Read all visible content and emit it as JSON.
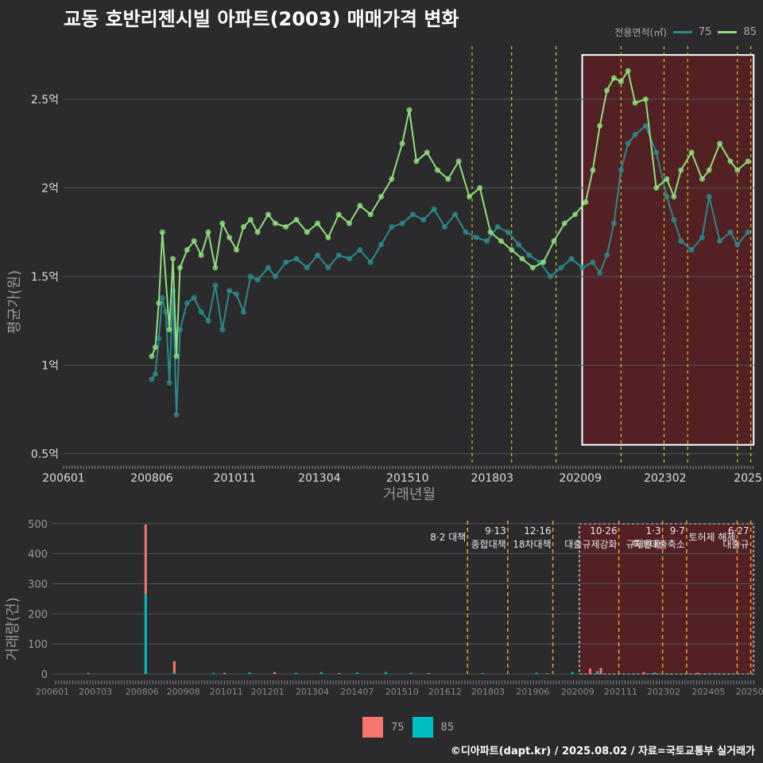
{
  "title": "교동 호반리젠시빌 아파트(2003) 매매가격 변화",
  "legend_title": "전용면적(㎡)",
  "footer": "©디아파트(dapt.kr) / 2025.08.02 / 자료=국토교통부 실거래가",
  "colors": {
    "background": "#2b2b2d",
    "grid": "#555555",
    "s75_line": "#2a8a8c",
    "s85_line": "#8fe07a",
    "bar75": "#f8766d",
    "bar85": "#00bfc4",
    "policy_line": "#e6e62e",
    "policy_line_bottom": "#f0a020",
    "highlight_fill": "#5a1f22",
    "highlight_border": "#ffffff"
  },
  "chart_data": [
    {
      "type": "line",
      "ylabel": "평균가(원)",
      "xlabel": "거래년월",
      "x_ticks": [
        "200601",
        "200806",
        "201011",
        "201304",
        "201510",
        "201803",
        "202009",
        "202302",
        "2025"
      ],
      "y_ticks": [
        "0.5억",
        "1억",
        "1.5억",
        "2억",
        "2.5억"
      ],
      "y_tick_values": [
        0.5,
        1.0,
        1.5,
        2.0,
        2.5
      ],
      "ylim": [
        0.45,
        2.8
      ],
      "xlim": [
        2006.0,
        2025.6
      ],
      "series": [
        {
          "name": "75",
          "x": [
            2008.5,
            2008.6,
            2008.7,
            2008.8,
            2008.9,
            2009.0,
            2009.1,
            2009.2,
            2009.3,
            2009.5,
            2009.7,
            2009.9,
            2010.1,
            2010.3,
            2010.5,
            2010.7,
            2010.9,
            2011.1,
            2011.3,
            2011.5,
            2011.8,
            2012.0,
            2012.3,
            2012.6,
            2012.9,
            2013.2,
            2013.5,
            2013.8,
            2014.1,
            2014.4,
            2014.7,
            2015.0,
            2015.3,
            2015.6,
            2015.9,
            2016.2,
            2016.5,
            2016.8,
            2017.1,
            2017.4,
            2017.7,
            2018.0,
            2018.3,
            2018.6,
            2018.9,
            2019.2,
            2019.5,
            2019.8,
            2020.1,
            2020.4,
            2020.7,
            2021.0,
            2021.2,
            2021.4,
            2021.6,
            2021.8,
            2022.0,
            2022.2,
            2022.5,
            2022.8,
            2023.1,
            2023.3,
            2023.5,
            2023.8,
            2024.1,
            2024.3,
            2024.6,
            2024.9,
            2025.1,
            2025.4
          ],
          "values": [
            0.92,
            0.95,
            1.15,
            1.38,
            1.3,
            0.9,
            1.42,
            0.72,
            1.2,
            1.35,
            1.38,
            1.3,
            1.25,
            1.45,
            1.2,
            1.42,
            1.4,
            1.3,
            1.5,
            1.48,
            1.55,
            1.5,
            1.58,
            1.6,
            1.55,
            1.62,
            1.55,
            1.62,
            1.6,
            1.65,
            1.58,
            1.68,
            1.78,
            1.8,
            1.85,
            1.82,
            1.88,
            1.78,
            1.85,
            1.75,
            1.72,
            1.7,
            1.78,
            1.75,
            1.68,
            1.62,
            1.58,
            1.5,
            1.55,
            1.6,
            1.55,
            1.58,
            1.52,
            1.62,
            1.8,
            2.1,
            2.25,
            2.3,
            2.35,
            2.2,
            1.95,
            1.82,
            1.7,
            1.65,
            1.72,
            1.95,
            1.7,
            1.75,
            1.68,
            1.75
          ]
        },
        {
          "name": "85",
          "x": [
            2008.5,
            2008.6,
            2008.7,
            2008.8,
            2009.0,
            2009.1,
            2009.2,
            2009.3,
            2009.5,
            2009.7,
            2009.9,
            2010.1,
            2010.3,
            2010.5,
            2010.7,
            2010.9,
            2011.1,
            2011.3,
            2011.5,
            2011.8,
            2012.0,
            2012.3,
            2012.6,
            2012.9,
            2013.2,
            2013.5,
            2013.8,
            2014.1,
            2014.4,
            2014.7,
            2015.0,
            2015.3,
            2015.6,
            2015.8,
            2016.0,
            2016.3,
            2016.6,
            2016.9,
            2017.2,
            2017.5,
            2017.8,
            2018.1,
            2018.4,
            2018.7,
            2019.0,
            2019.3,
            2019.6,
            2019.9,
            2020.2,
            2020.5,
            2020.8,
            2021.0,
            2021.2,
            2021.4,
            2021.6,
            2021.8,
            2022.0,
            2022.2,
            2022.5,
            2022.8,
            2023.1,
            2023.3,
            2023.5,
            2023.8,
            2024.1,
            2024.3,
            2024.6,
            2024.9,
            2025.1,
            2025.4
          ],
          "values": [
            1.05,
            1.1,
            1.35,
            1.75,
            1.2,
            1.6,
            1.05,
            1.55,
            1.65,
            1.7,
            1.62,
            1.75,
            1.55,
            1.8,
            1.72,
            1.65,
            1.78,
            1.82,
            1.75,
            1.85,
            1.8,
            1.78,
            1.82,
            1.75,
            1.8,
            1.72,
            1.85,
            1.8,
            1.9,
            1.85,
            1.95,
            2.05,
            2.25,
            2.44,
            2.15,
            2.2,
            2.1,
            2.05,
            2.15,
            1.95,
            2.0,
            1.75,
            1.7,
            1.65,
            1.6,
            1.55,
            1.58,
            1.7,
            1.8,
            1.85,
            1.92,
            2.1,
            2.35,
            2.55,
            2.62,
            2.6,
            2.66,
            2.48,
            2.5,
            2.0,
            2.05,
            1.95,
            2.1,
            2.2,
            2.05,
            2.1,
            2.25,
            2.15,
            2.1,
            2.15
          ]
        }
      ],
      "policy_lines_x": [
        2017.58,
        2018.7,
        2019.96,
        2021.8,
        2023.02,
        2023.69,
        2025.1,
        2025.48
      ],
      "highlight": {
        "x_start": 2020.7,
        "x_end": 2025.56,
        "y_start": 0.55,
        "y_end": 2.75
      }
    },
    {
      "type": "bar",
      "ylabel": "거래량(건)",
      "x_ticks": [
        "200601",
        "200703",
        "200806",
        "200908",
        "201011",
        "201201",
        "201304",
        "201407",
        "201510",
        "201612",
        "201803",
        "201906",
        "202009",
        "202111",
        "202302",
        "202405",
        "20250"
      ],
      "y_ticks": [
        "0",
        "100",
        "200",
        "300",
        "400",
        "500"
      ],
      "y_tick_values": [
        0,
        100,
        200,
        300,
        400,
        500
      ],
      "ylim": [
        0,
        510
      ],
      "series": [
        {
          "name": "75",
          "x": [
            2007.0,
            2008.6,
            2009.4,
            2010.8,
            2012.2,
            2014.0,
            2016.5,
            2019.8,
            2021.0,
            2021.3,
            2022.5,
            2024.0
          ],
          "values": [
            3,
            232,
            38,
            4,
            6,
            3,
            3,
            2,
            18,
            20,
            6,
            4
          ]
        },
        {
          "name": "85",
          "x": [
            2008.6,
            2009.4,
            2010.5,
            2011.5,
            2012.8,
            2013.5,
            2014.5,
            2015.3,
            2016.0,
            2018.0,
            2019.5,
            2020.5,
            2021.2,
            2022.8,
            2024.5
          ],
          "values": [
            265,
            5,
            4,
            5,
            4,
            6,
            5,
            6,
            4,
            3,
            4,
            6,
            10,
            5,
            3
          ]
        }
      ],
      "policy_annotations": [
        {
          "x": 2017.58,
          "lines": [
            "8·2 대책"
          ]
        },
        {
          "x": 2018.7,
          "lines": [
            "9·13",
            "종합대책"
          ]
        },
        {
          "x": 2019.96,
          "lines": [
            "12·16",
            "18차대책"
          ]
        },
        {
          "x": 2021.8,
          "lines": [
            "10·26",
            "대출규제강화"
          ]
        },
        {
          "x": 2023.02,
          "lines": [
            "1·3",
            "규제완화"
          ]
        },
        {
          "x": 2023.69,
          "lines": [
            "9·7",
            "특례대출축소"
          ]
        },
        {
          "x": 2025.1,
          "lines": [
            "토허제 해제"
          ]
        },
        {
          "x": 2025.48,
          "lines": [
            "6·27",
            "대출규"
          ]
        }
      ],
      "highlight": {
        "x_start": 2020.7,
        "x_end": 2025.56
      }
    }
  ]
}
